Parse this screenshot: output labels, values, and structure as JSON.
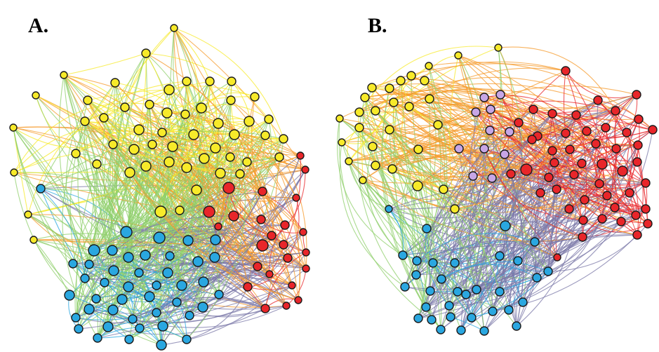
{
  "panels": [
    {
      "label": "A."
    },
    {
      "label": "B."
    }
  ],
  "colors": {
    "yellow": "#f7ea2a",
    "red": "#e8262a",
    "blue": "#2aa7e0",
    "green": "#8fcf6b",
    "purple": "#c7a6e6",
    "orange": "#f59a2a",
    "slate": "#7b78a8"
  }
}
